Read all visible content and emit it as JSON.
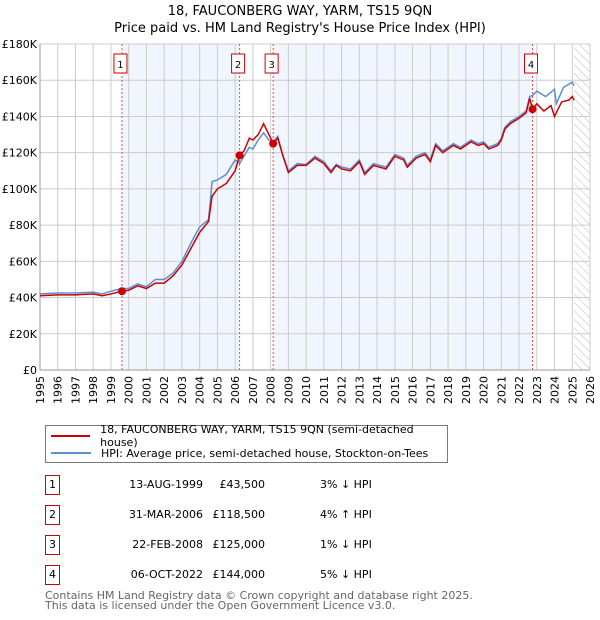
{
  "title_line1": "18, FAUCONBERG WAY, YARM, TS15 9QN",
  "title_line2": "Price paid vs. HM Land Registry's House Price Index (HPI)",
  "chart_data": {
    "type": "line",
    "xlim": [
      1995,
      2026
    ],
    "ylim": [
      0,
      180000
    ],
    "y_ticks": [
      {
        "v": 0,
        "label": "£0"
      },
      {
        "v": 20000,
        "label": "£20K"
      },
      {
        "v": 40000,
        "label": "£40K"
      },
      {
        "v": 60000,
        "label": "£60K"
      },
      {
        "v": 80000,
        "label": "£80K"
      },
      {
        "v": 100000,
        "label": "£100K"
      },
      {
        "v": 120000,
        "label": "£120K"
      },
      {
        "v": 140000,
        "label": "£140K"
      },
      {
        "v": 160000,
        "label": "£160K"
      },
      {
        "v": 180000,
        "label": "£180K"
      }
    ],
    "x_ticks": [
      "1995",
      "1996",
      "1997",
      "1998",
      "1999",
      "2000",
      "2001",
      "2002",
      "2003",
      "2004",
      "2005",
      "2006",
      "2007",
      "2008",
      "2009",
      "2010",
      "2011",
      "2012",
      "2013",
      "2014",
      "2015",
      "2016",
      "2017",
      "2018",
      "2019",
      "2020",
      "2021",
      "2022",
      "2023",
      "2024",
      "2025",
      "2026"
    ],
    "data_end": 2025.1,
    "series": [
      {
        "name": "18, FAUCONBERG WAY, YARM, TS15 9QN (semi-detached house)",
        "color": "#cc0000",
        "points": [
          [
            1995,
            41000
          ],
          [
            1996,
            41500
          ],
          [
            1997,
            41500
          ],
          [
            1998,
            42000
          ],
          [
            1998.5,
            41000
          ],
          [
            1999,
            42000
          ],
          [
            1999.6,
            43500
          ],
          [
            2000,
            44000
          ],
          [
            2000.5,
            46500
          ],
          [
            2001,
            45000
          ],
          [
            2001.5,
            48000
          ],
          [
            2002,
            48000
          ],
          [
            2002.5,
            52000
          ],
          [
            2003,
            58000
          ],
          [
            2003.5,
            67000
          ],
          [
            2004,
            76000
          ],
          [
            2004.5,
            82000
          ],
          [
            2004.7,
            96000
          ],
          [
            2005,
            100000
          ],
          [
            2005.5,
            103000
          ],
          [
            2006,
            110000
          ],
          [
            2006.25,
            118500
          ],
          [
            2006.5,
            121000
          ],
          [
            2006.8,
            128000
          ],
          [
            2007,
            127000
          ],
          [
            2007.3,
            130000
          ],
          [
            2007.6,
            136000
          ],
          [
            2007.9,
            130000
          ],
          [
            2008.15,
            125000
          ],
          [
            2008.4,
            128000
          ],
          [
            2008.7,
            118000
          ],
          [
            2009,
            109000
          ],
          [
            2009.5,
            113000
          ],
          [
            2010,
            113000
          ],
          [
            2010.5,
            117000
          ],
          [
            2011,
            114000
          ],
          [
            2011.4,
            109000
          ],
          [
            2011.7,
            113000
          ],
          [
            2012,
            111000
          ],
          [
            2012.5,
            110000
          ],
          [
            2013,
            115000
          ],
          [
            2013.3,
            108000
          ],
          [
            2013.8,
            113000
          ],
          [
            2014.5,
            111000
          ],
          [
            2015,
            118000
          ],
          [
            2015.5,
            116000
          ],
          [
            2015.7,
            112000
          ],
          [
            2016.2,
            117000
          ],
          [
            2016.7,
            119000
          ],
          [
            2017,
            115000
          ],
          [
            2017.3,
            124000
          ],
          [
            2017.7,
            120000
          ],
          [
            2018.3,
            124000
          ],
          [
            2018.7,
            122000
          ],
          [
            2019.3,
            126000
          ],
          [
            2019.7,
            124000
          ],
          [
            2020,
            125000
          ],
          [
            2020.3,
            122000
          ],
          [
            2020.8,
            124000
          ],
          [
            2021,
            127000
          ],
          [
            2021.2,
            133000
          ],
          [
            2021.5,
            136000
          ],
          [
            2022,
            139000
          ],
          [
            2022.4,
            142000
          ],
          [
            2022.6,
            150000
          ],
          [
            2022.76,
            144000
          ],
          [
            2023,
            147000
          ],
          [
            2023.4,
            143000
          ],
          [
            2023.8,
            146000
          ],
          [
            2024,
            140000
          ],
          [
            2024.4,
            148000
          ],
          [
            2024.8,
            149000
          ],
          [
            2025,
            151000
          ],
          [
            2025.1,
            149000
          ]
        ]
      },
      {
        "name": "HPI: Average price, semi-detached house, Stockton-on-Tees",
        "color": "#5b8fd6",
        "points": [
          [
            1995,
            42000
          ],
          [
            1996,
            42500
          ],
          [
            1997,
            42500
          ],
          [
            1998,
            43000
          ],
          [
            1998.5,
            42000
          ],
          [
            1999,
            43500
          ],
          [
            1999.6,
            45000
          ],
          [
            2000,
            45000
          ],
          [
            2000.5,
            47500
          ],
          [
            2001,
            46000
          ],
          [
            2001.5,
            50000
          ],
          [
            2002,
            50000
          ],
          [
            2002.5,
            53500
          ],
          [
            2003,
            60000
          ],
          [
            2003.5,
            70000
          ],
          [
            2004,
            79000
          ],
          [
            2004.5,
            83000
          ],
          [
            2004.7,
            104000
          ],
          [
            2005,
            105000
          ],
          [
            2005.5,
            108000
          ],
          [
            2006,
            116000
          ],
          [
            2006.25,
            114000
          ],
          [
            2006.5,
            118000
          ],
          [
            2006.8,
            123000
          ],
          [
            2007,
            122000
          ],
          [
            2007.3,
            127000
          ],
          [
            2007.6,
            131000
          ],
          [
            2007.9,
            127000
          ],
          [
            2008.15,
            126000
          ],
          [
            2008.4,
            129000
          ],
          [
            2008.7,
            118000
          ],
          [
            2009,
            110000
          ],
          [
            2009.5,
            114000
          ],
          [
            2010,
            113500
          ],
          [
            2010.5,
            118000
          ],
          [
            2011,
            115000
          ],
          [
            2011.4,
            110000
          ],
          [
            2011.7,
            113500
          ],
          [
            2012,
            112000
          ],
          [
            2012.5,
            111000
          ],
          [
            2013,
            116000
          ],
          [
            2013.3,
            109000
          ],
          [
            2013.8,
            114000
          ],
          [
            2014.5,
            112000
          ],
          [
            2015,
            119000
          ],
          [
            2015.5,
            117000
          ],
          [
            2015.7,
            113000
          ],
          [
            2016.2,
            118000
          ],
          [
            2016.7,
            120000
          ],
          [
            2017,
            116000
          ],
          [
            2017.3,
            125000
          ],
          [
            2017.7,
            121000
          ],
          [
            2018.3,
            125000
          ],
          [
            2018.7,
            123000
          ],
          [
            2019.3,
            127000
          ],
          [
            2019.7,
            125000
          ],
          [
            2020,
            126000
          ],
          [
            2020.3,
            123000
          ],
          [
            2020.8,
            125000
          ],
          [
            2021,
            128000
          ],
          [
            2021.2,
            134000
          ],
          [
            2021.5,
            137000
          ],
          [
            2022,
            140000
          ],
          [
            2022.4,
            143000
          ],
          [
            2022.6,
            151000
          ],
          [
            2022.76,
            151500
          ],
          [
            2023,
            154000
          ],
          [
            2023.5,
            151000
          ],
          [
            2024,
            155000
          ],
          [
            2024.1,
            147000
          ],
          [
            2024.5,
            156000
          ],
          [
            2025,
            159000
          ],
          [
            2025.1,
            157000
          ]
        ]
      }
    ],
    "sales": [
      {
        "label": "1",
        "x": 1999.62,
        "y": 43500,
        "date": "13-AUG-1999",
        "price": "£43,500",
        "hpi": "3% ↓ HPI"
      },
      {
        "label": "2",
        "x": 2006.25,
        "y": 118500,
        "date": "31-MAR-2006",
        "price": "£118,500",
        "hpi": "4% ↑ HPI"
      },
      {
        "label": "3",
        "x": 2008.14,
        "y": 125000,
        "date": "22-FEB-2008",
        "price": "£125,000",
        "hpi": "1% ↓ HPI"
      },
      {
        "label": "4",
        "x": 2022.76,
        "y": 144000,
        "date": "06-OCT-2022",
        "price": "£144,000",
        "hpi": "5% ↓ HPI"
      }
    ]
  },
  "footer_line1": "Contains HM Land Registry data © Crown copyright and database right 2025.",
  "footer_line2": "This data is licensed under the Open Government Licence v3.0."
}
